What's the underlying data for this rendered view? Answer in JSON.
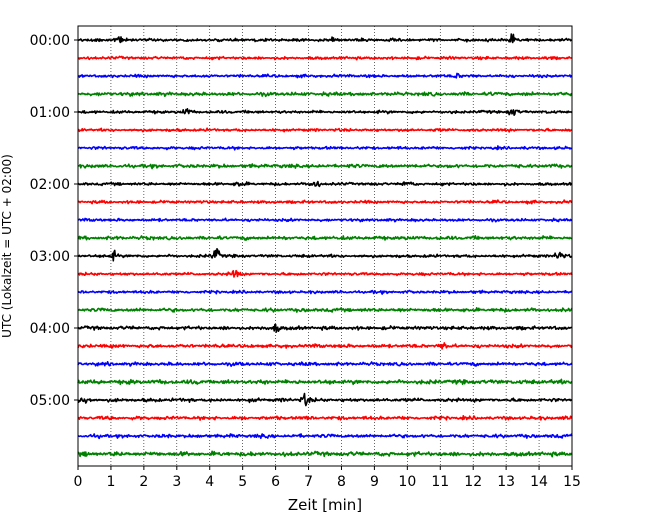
{
  "chart_data": {
    "type": "line",
    "title": "",
    "xlabel": "Zeit  [min]",
    "ylabel": "UTC (Lokalzeit = UTC + 02:00)",
    "xlim": [
      0,
      15
    ],
    "x_ticks": [
      0,
      1,
      2,
      3,
      4,
      5,
      6,
      7,
      8,
      9,
      10,
      11,
      12,
      13,
      14,
      15
    ],
    "x_tick_labels": [
      "0",
      "1",
      "2",
      "3",
      "4",
      "5",
      "6",
      "7",
      "8",
      "9",
      "10",
      "11",
      "12",
      "13",
      "14",
      "15"
    ],
    "y_tick_labels": [
      "00:00",
      "01:00",
      "02:00",
      "03:00",
      "04:00",
      "05:00"
    ],
    "grid": "vertical dotted at each minute",
    "trace_interval_minutes": 15,
    "trace_count": 24,
    "color_cycle": [
      "#000000",
      "#ff0000",
      "#0000ff",
      "#008000"
    ],
    "traces": [
      {
        "start": "00:00",
        "color": "#000000"
      },
      {
        "start": "00:15",
        "color": "#ff0000"
      },
      {
        "start": "00:30",
        "color": "#0000ff"
      },
      {
        "start": "00:45",
        "color": "#008000"
      },
      {
        "start": "01:00",
        "color": "#000000"
      },
      {
        "start": "01:15",
        "color": "#ff0000"
      },
      {
        "start": "01:30",
        "color": "#0000ff"
      },
      {
        "start": "01:45",
        "color": "#008000"
      },
      {
        "start": "02:00",
        "color": "#000000"
      },
      {
        "start": "02:15",
        "color": "#ff0000"
      },
      {
        "start": "02:30",
        "color": "#0000ff"
      },
      {
        "start": "02:45",
        "color": "#008000"
      },
      {
        "start": "03:00",
        "color": "#000000"
      },
      {
        "start": "03:15",
        "color": "#ff0000"
      },
      {
        "start": "03:30",
        "color": "#0000ff"
      },
      {
        "start": "03:45",
        "color": "#008000"
      },
      {
        "start": "04:00",
        "color": "#000000"
      },
      {
        "start": "04:15",
        "color": "#ff0000"
      },
      {
        "start": "04:30",
        "color": "#0000ff"
      },
      {
        "start": "04:45",
        "color": "#008000"
      },
      {
        "start": "05:00",
        "color": "#000000"
      },
      {
        "start": "05:15",
        "color": "#ff0000"
      },
      {
        "start": "05:30",
        "color": "#0000ff"
      },
      {
        "start": "05:45",
        "color": "#008000"
      }
    ]
  }
}
